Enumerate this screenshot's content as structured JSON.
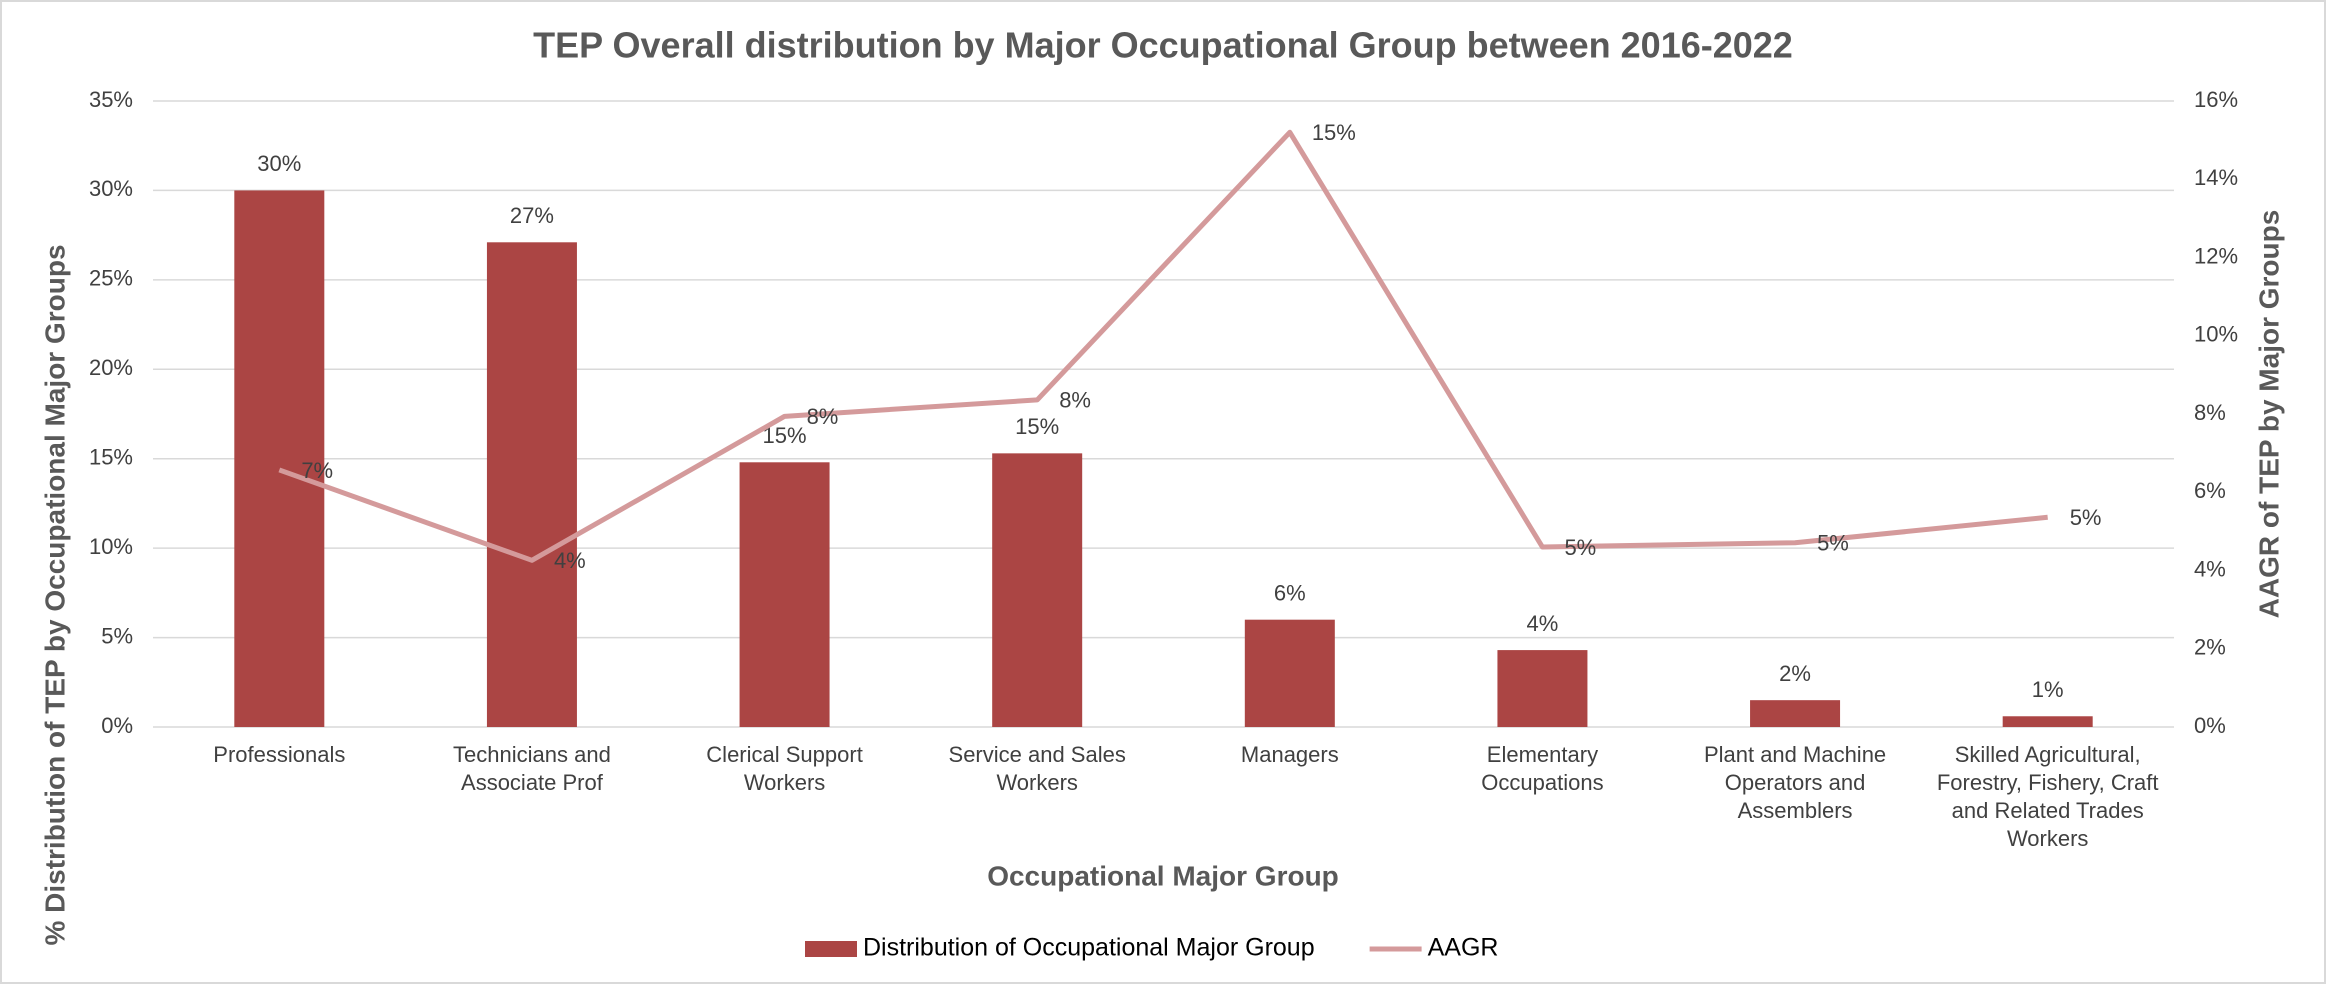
{
  "chart_data": {
    "type": "bar_line",
    "title": "TEP Overall distribution by Major Occupational Group between 2016-2022",
    "x_label": "Occupational Major Group",
    "y_label": "% Distribution of TEP by Occupational Major Groups",
    "y2_label": "AAGR of TEP by Major Groups",
    "categories": [
      "Professionals",
      "Technicians and\nAssociate Prof",
      "Clerical Support\nWorkers",
      "Service and Sales\nWorkers",
      "Managers",
      "Elementary\nOccupations",
      "Plant and Machine\nOperators and\nAssemblers",
      "Skilled Agricultural,\nForestry, Fishery, Craft\nand Related Trades\nWorkers"
    ],
    "series": [
      {
        "name": "Distribution of Occupational Major Group",
        "type": "bar",
        "color": "#ab4544",
        "values": [
          30.0,
          27.1,
          14.8,
          15.3,
          6.0,
          4.3,
          1.5,
          0.6
        ],
        "value_labels": [
          "30%",
          "27%",
          "15%",
          "15%",
          "6%",
          "4%",
          "2%",
          "1%"
        ]
      },
      {
        "name": "AAGR",
        "type": "line",
        "axis": "y2",
        "color": "#d49a9b",
        "values": [
          6.57,
          4.26,
          7.94,
          8.36,
          15.2,
          4.6,
          4.71,
          5.36
        ],
        "value_labels": [
          "7%",
          "4%",
          "8%",
          "8%",
          "15%",
          "5%",
          "5%",
          "5%"
        ]
      }
    ],
    "ylim": [
      0,
      35
    ],
    "yticks": [
      {
        "value": 0,
        "label": "0%"
      },
      {
        "value": 5,
        "label": "5%"
      },
      {
        "value": 10,
        "label": "10%"
      },
      {
        "value": 15,
        "label": "15%"
      },
      {
        "value": 20,
        "label": "20%"
      },
      {
        "value": 25,
        "label": "25%"
      },
      {
        "value": 30,
        "label": "30%"
      },
      {
        "value": 35,
        "label": "35%"
      }
    ],
    "y2lim": [
      0,
      16
    ],
    "y2ticks": [
      {
        "value": 0,
        "label": "0%"
      },
      {
        "value": 2,
        "label": "2%"
      },
      {
        "value": 4,
        "label": "4%"
      },
      {
        "value": 6,
        "label": "6%"
      },
      {
        "value": 8,
        "label": "8%"
      },
      {
        "value": 10,
        "label": "10%"
      },
      {
        "value": 12,
        "label": "12%"
      },
      {
        "value": 14,
        "label": "14%"
      },
      {
        "value": 16,
        "label": "16%"
      }
    ],
    "grid": true,
    "legend": "bottom"
  }
}
